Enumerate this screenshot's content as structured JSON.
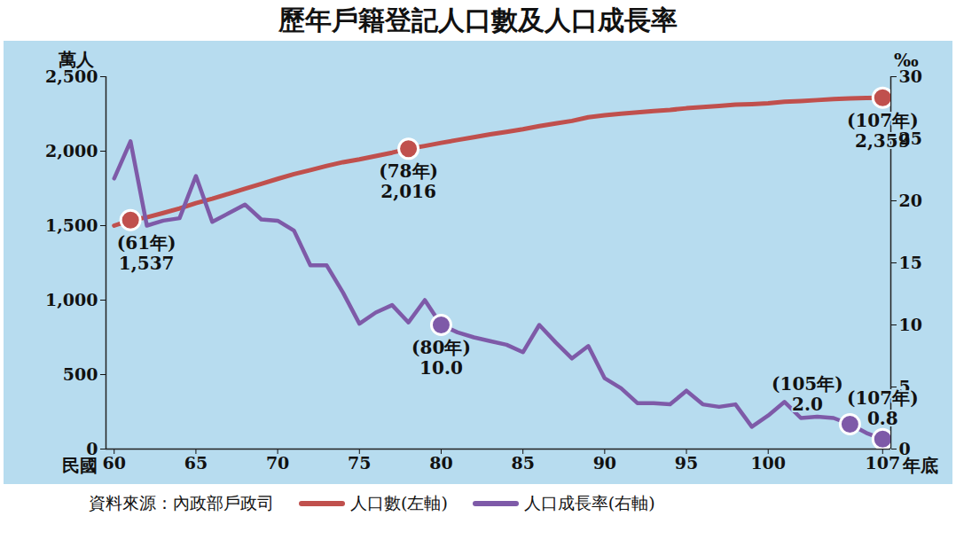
{
  "chart_data": {
    "type": "line",
    "title": "歷年戶籍登記人口數及人口成長率",
    "x": [
      60,
      61,
      62,
      63,
      64,
      65,
      66,
      67,
      68,
      69,
      70,
      71,
      72,
      73,
      74,
      75,
      76,
      77,
      78,
      79,
      80,
      81,
      82,
      83,
      84,
      85,
      86,
      87,
      88,
      89,
      90,
      91,
      92,
      93,
      94,
      95,
      96,
      97,
      98,
      99,
      100,
      101,
      102,
      103,
      104,
      105,
      106,
      107
    ],
    "xlim": [
      59.5,
      107.5
    ],
    "xticks": [
      60,
      65,
      70,
      75,
      80,
      85,
      90,
      95,
      100,
      107
    ],
    "xlabel": "年底",
    "xlabel_left": "民國",
    "ylim": [
      0,
      2500
    ],
    "yticks": [
      0,
      500,
      {
        "value": 1000,
        "label": "1,000"
      },
      {
        "value": 1500,
        "label": "1,500"
      },
      {
        "value": 2000,
        "label": "2,000"
      },
      {
        "value": 2500,
        "label": "2,500"
      }
    ],
    "y_label": "萬人",
    "y2lim": [
      0,
      30
    ],
    "y2ticks": [
      0,
      5,
      10,
      15,
      20,
      25,
      30
    ],
    "y2_label": "‰",
    "grid": false,
    "series": [
      {
        "name": "人口數(左軸)",
        "color": "#c0504d",
        "axis": "y",
        "values": [
          1500,
          1537,
          1556,
          1585,
          1615,
          1651,
          1681,
          1714,
          1748,
          1781,
          1814,
          1846,
          1873,
          1901,
          1926,
          1945,
          1967,
          1990,
          2016,
          2035,
          2056,
          2075,
          2094,
          2113,
          2130,
          2147,
          2168,
          2186,
          2203,
          2228,
          2241,
          2252,
          2260,
          2269,
          2277,
          2288,
          2296,
          2304,
          2312,
          2316,
          2322,
          2332,
          2337,
          2343,
          2349,
          2354,
          2357,
          2359
        ]
      },
      {
        "name": "人口成長率(右軸)",
        "color": "#7e5aa8",
        "axis": "y2",
        "values": [
          21.8,
          24.8,
          18.0,
          18.4,
          18.6,
          22.0,
          18.3,
          19.0,
          19.7,
          18.5,
          18.4,
          17.6,
          14.8,
          14.8,
          12.6,
          10.1,
          11.0,
          11.6,
          10.2,
          12.0,
          10.0,
          9.4,
          9.0,
          8.7,
          8.4,
          7.8,
          10.0,
          8.6,
          7.3,
          8.3,
          5.7,
          4.9,
          3.7,
          3.7,
          3.6,
          4.7,
          3.6,
          3.4,
          3.6,
          1.8,
          2.7,
          3.8,
          2.5,
          2.6,
          2.5,
          2.0,
          1.3,
          0.8
        ]
      }
    ],
    "annotations": [
      {
        "series": "人口數(左軸)",
        "x": 61,
        "value": 1537,
        "label": "(61年)",
        "value_label": "1,537"
      },
      {
        "series": "人口數(左軸)",
        "x": 78,
        "value": 2016,
        "label": "(78年)",
        "value_label": "2,016"
      },
      {
        "series": "人口數(左軸)",
        "x": 107,
        "value": 2359,
        "label": "(107年)",
        "value_label": "2,359"
      },
      {
        "series": "人口成長率(右軸)",
        "x": 80,
        "value": 10.0,
        "label": "(80年)",
        "value_label": "10.0"
      },
      {
        "series": "人口成長率(右軸)",
        "x": 105,
        "value": 2.0,
        "label": "(105年)",
        "value_label": "2.0"
      },
      {
        "series": "人口成長率(右軸)",
        "x": 107,
        "value": 0.8,
        "label": "(107年)",
        "value_label": "0.8"
      }
    ],
    "legend": "bottom",
    "source": "資料來源：內政部戶政司"
  }
}
